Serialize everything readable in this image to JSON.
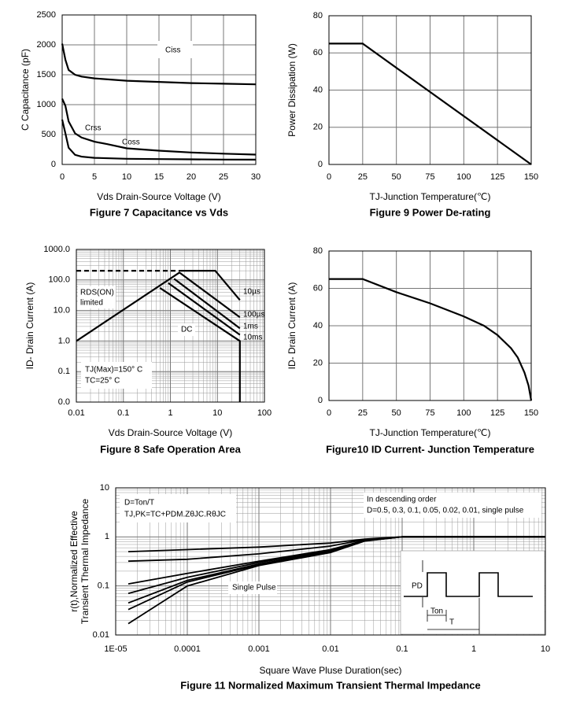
{
  "chart_data": [
    {
      "type": "line",
      "title": "Figure 7 Capacitance vs Vds",
      "xlabel": "Vds Drain-Source Voltage (V)",
      "ylabel": "C Capacitance (pF)",
      "xlim": [
        0,
        30
      ],
      "ylim": [
        0,
        2500
      ],
      "xticks": [
        0,
        5,
        10,
        15,
        20,
        25,
        30
      ],
      "yticks": [
        0,
        500,
        1000,
        1500,
        2000,
        2500
      ],
      "grid": true,
      "series": [
        {
          "name": "Ciss",
          "color": "#000000",
          "x": [
            0,
            0.5,
            1,
            2,
            3,
            5,
            10,
            15,
            20,
            25,
            30
          ],
          "values": [
            2020,
            1750,
            1580,
            1500,
            1470,
            1440,
            1400,
            1380,
            1360,
            1350,
            1340
          ]
        },
        {
          "name": "Coss",
          "color": "#000000",
          "x": [
            0,
            0.5,
            1,
            2,
            3,
            5,
            7,
            10,
            15,
            20,
            25,
            30
          ],
          "values": [
            1100,
            980,
            720,
            520,
            450,
            380,
            340,
            270,
            230,
            200,
            180,
            165
          ]
        },
        {
          "name": "Crss",
          "color": "#000000",
          "x": [
            0,
            0.5,
            1,
            2,
            3,
            5,
            10,
            15,
            20,
            25,
            30
          ],
          "values": [
            750,
            520,
            280,
            160,
            130,
            110,
            95,
            90,
            85,
            82,
            80
          ]
        }
      ]
    },
    {
      "type": "line",
      "title": "Figure 9 Power De-rating",
      "xlabel": "TJ-Junction Temperature(℃)",
      "ylabel": "Power Dissipation (W)",
      "xlim": [
        0,
        150
      ],
      "ylim": [
        0,
        80
      ],
      "xticks": [
        0,
        25,
        50,
        75,
        100,
        125,
        150
      ],
      "yticks": [
        0,
        20,
        40,
        60,
        80
      ],
      "grid": true,
      "series": [
        {
          "color": "#000000",
          "x": [
            0,
            25,
            150
          ],
          "values": [
            65,
            65,
            0
          ]
        }
      ]
    },
    {
      "type": "line",
      "title": "Figure 8 Safe Operation Area",
      "xlabel": "Vds Drain-Source Voltage (V)",
      "ylabel": "ID- Drain Current (A)",
      "log_x": true,
      "log_y": true,
      "minor_grid": true,
      "grid": true,
      "xlim": [
        0.01,
        100
      ],
      "ylim": [
        0.01,
        1000
      ],
      "xticks": [
        0.01,
        0.1,
        1,
        10,
        100
      ],
      "yticks": [
        {
          "value": 0.01,
          "label": "0.0"
        },
        0.1,
        {
          "value": 1,
          "label": "1.0"
        },
        {
          "value": 10,
          "label": "10.0"
        },
        {
          "value": 100,
          "label": "100.0"
        },
        {
          "value": 1000,
          "label": "1000.0"
        }
      ],
      "annotations": [
        "RDS(ON)",
        "limited",
        "TJ(Max)=150° C",
        "TC=25° C"
      ],
      "series": [
        {
          "color": "#000000",
          "x": [
            0.01,
            1.6
          ],
          "values": [
            1,
            180
          ]
        },
        {
          "color": "#000000",
          "dash": true,
          "x": [
            0.01,
            1.6
          ],
          "values": [
            200,
            200
          ]
        },
        {
          "name": "10µs",
          "color": "#000000",
          "x": [
            1.6,
            9,
            30
          ],
          "values": [
            200,
            200,
            22
          ]
        },
        {
          "name": "100µs",
          "color": "#000000",
          "x": [
            1.6,
            30
          ],
          "values": [
            170,
            6
          ]
        },
        {
          "name": "1ms",
          "color": "#000000",
          "x": [
            1.2,
            30
          ],
          "values": [
            110,
            2.6
          ]
        },
        {
          "name": "10ms",
          "color": "#000000",
          "x": [
            0.9,
            30
          ],
          "values": [
            80,
            1.6
          ]
        },
        {
          "name": "DC",
          "color": "#000000",
          "x": [
            0.6,
            30,
            30
          ],
          "values": [
            55,
            1,
            0.01
          ]
        }
      ]
    },
    {
      "type": "line",
      "title": "Figure10 ID Current- Junction Temperature",
      "xlabel": "TJ-Junction Temperature(℃)",
      "ylabel": "ID- Drain Current (A)",
      "xlim": [
        0,
        150
      ],
      "ylim": [
        0,
        80
      ],
      "xticks": [
        0,
        25,
        50,
        75,
        100,
        125,
        150
      ],
      "yticks": [
        0,
        20,
        40,
        60,
        80
      ],
      "grid": true,
      "series": [
        {
          "color": "#000000",
          "x": [
            0,
            25,
            50,
            75,
            100,
            115,
            125,
            135,
            140,
            145,
            148,
            150
          ],
          "values": [
            65,
            65,
            58,
            52,
            45,
            40,
            35,
            28,
            23,
            15,
            8,
            0
          ]
        }
      ]
    },
    {
      "type": "line",
      "title": "Figure 11 Normalized Maximum Transient Thermal Impedance",
      "xlabel": "Square Wave Pluse Duration(sec)",
      "ylabel": [
        "r(t),Normalized Effective",
        "Transient Thermal Impedance"
      ],
      "log_x": true,
      "log_y": true,
      "minor_grid": true,
      "grid": true,
      "xlim": [
        1e-05,
        10
      ],
      "ylim": [
        0.01,
        10
      ],
      "xticks": [
        {
          "value": 1e-05,
          "label": "1E-05"
        },
        0.0001,
        0.001,
        0.01,
        0.1,
        1,
        10
      ],
      "yticks": [
        0.01,
        0.1,
        1,
        10
      ],
      "annotations": [
        "D=Ton/T",
        "TJ,PK=TC+PDM.ZθJC.RθJC",
        "In descending order",
        "D=0.5, 0.3, 0.1, 0.05, 0.02, 0.01, single pulse",
        "PD",
        "Ton",
        "T"
      ],
      "series": [
        {
          "color": "#000000",
          "x": [
            1.5e-05,
            0.0001,
            0.001,
            0.01,
            0.03,
            0.1,
            10
          ],
          "values": [
            0.5,
            0.55,
            0.62,
            0.75,
            0.9,
            1,
            1
          ]
        },
        {
          "color": "#000000",
          "x": [
            1.5e-05,
            0.0001,
            0.001,
            0.01,
            0.03,
            0.1,
            10
          ],
          "values": [
            0.32,
            0.35,
            0.45,
            0.65,
            0.88,
            1,
            1
          ]
        },
        {
          "color": "#000000",
          "x": [
            1.5e-05,
            0.0001,
            0.001,
            0.01,
            0.03,
            0.1,
            10
          ],
          "values": [
            0.11,
            0.18,
            0.32,
            0.55,
            0.85,
            1,
            1
          ]
        },
        {
          "color": "#000000",
          "x": [
            1.5e-05,
            0.0001,
            0.001,
            0.01,
            0.03,
            0.1,
            10
          ],
          "values": [
            0.07,
            0.15,
            0.3,
            0.52,
            0.84,
            1,
            1
          ]
        },
        {
          "color": "#000000",
          "x": [
            1.5e-05,
            0.0001,
            0.001,
            0.01,
            0.03,
            0.1,
            10
          ],
          "values": [
            0.045,
            0.13,
            0.28,
            0.5,
            0.83,
            1,
            1
          ]
        },
        {
          "color": "#000000",
          "x": [
            1.5e-05,
            0.0001,
            0.001,
            0.01,
            0.03,
            0.1,
            10
          ],
          "values": [
            0.033,
            0.12,
            0.27,
            0.5,
            0.83,
            1,
            1
          ]
        },
        {
          "name": "Single Pulse",
          "color": "#000000",
          "x": [
            1.5e-05,
            0.0001,
            0.001,
            0.01,
            0.03,
            0.1,
            10
          ],
          "values": [
            0.017,
            0.1,
            0.26,
            0.48,
            0.82,
            1,
            1
          ]
        }
      ]
    }
  ]
}
